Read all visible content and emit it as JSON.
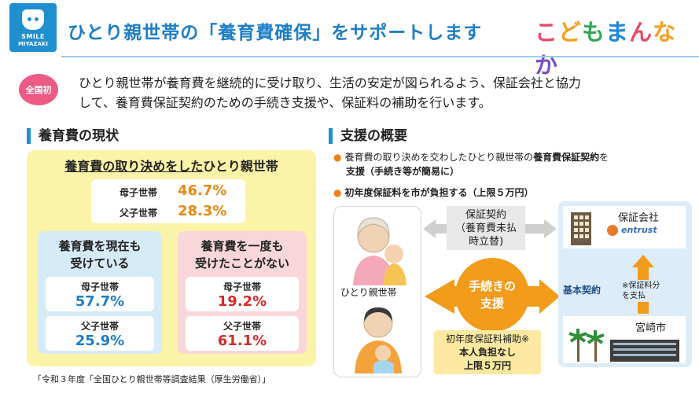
{
  "header": {
    "logo_line1": "SMILE",
    "logo_line2": "MIYAZAKI",
    "title": "ひとり親世帯の「養育費確保」をサポートします",
    "brand_chars": [
      "こ",
      "ど",
      "も",
      "ま",
      "ん",
      "な",
      "か"
    ]
  },
  "intro": {
    "badge": "全国初",
    "text_line1": "ひとり親世帯が養育費を継続的に受け取り、生活の安定が図られるよう、保証会社と協力",
    "text_line2": "して、養育費保証契約のための手続き支援や、保証料の補助を行います。"
  },
  "current": {
    "heading": "養育費の現状",
    "box_head_underlined": "養育費の取り決めをした",
    "box_head_rest": "ひとり親世帯",
    "arranged": [
      {
        "label": "母子世帯",
        "value": "46.7%"
      },
      {
        "label": "父子世帯",
        "value": "28.3%"
      }
    ],
    "receiving": {
      "head_line1": "養育費を現在も",
      "head_line2": "受けている",
      "items": [
        {
          "label": "母子世帯",
          "value": "57.7%"
        },
        {
          "label": "父子世帯",
          "value": "25.9%"
        }
      ]
    },
    "never": {
      "head_line1": "養育費を一度も",
      "head_line2": "受けたことがない",
      "items": [
        {
          "label": "母子世帯",
          "value": "19.2%"
        },
        {
          "label": "父子世帯",
          "value": "61.1%"
        }
      ]
    },
    "source": "「令和３年度「全国ひとり親世帯等調査結果（厚生労働省）」"
  },
  "support": {
    "heading": "支援の概要",
    "bullet1_pre": "養育費の取り決めを交わしたひとり親世帯の",
    "bullet1_bold": "養育費保証契約",
    "bullet1_post": "を",
    "bullet1_line2": "支援（手続き等が簡易に）",
    "bullet2": "初年度保証料を市が負担する（上限５万円）",
    "single_parent": "ひとり親世帯",
    "guarantee_line1": "保証契約",
    "guarantee_line2": "（養育費未払",
    "guarantee_line3": "時立替)",
    "procedure_line1": "手続きの",
    "procedure_line2": "支援",
    "company": "保証会社",
    "company_logo": "entrust",
    "basic_contract": "基本契約",
    "fee_note_line1": "※保証料分",
    "fee_note_line2": "を支払",
    "city": "宮崎市",
    "subsidy_line1": "初年度保証料補助※",
    "subsidy_line2": "本人負担なし",
    "subsidy_line3": "上限５万円"
  },
  "colors": {
    "title_blue": "#1e7ec8",
    "accent_orange": "#f39b1a",
    "pct_orange": "#e88a10",
    "pct_blue": "#1e7ec8",
    "pct_red": "#d62b2b",
    "badge_pink": "#ee5a84"
  }
}
